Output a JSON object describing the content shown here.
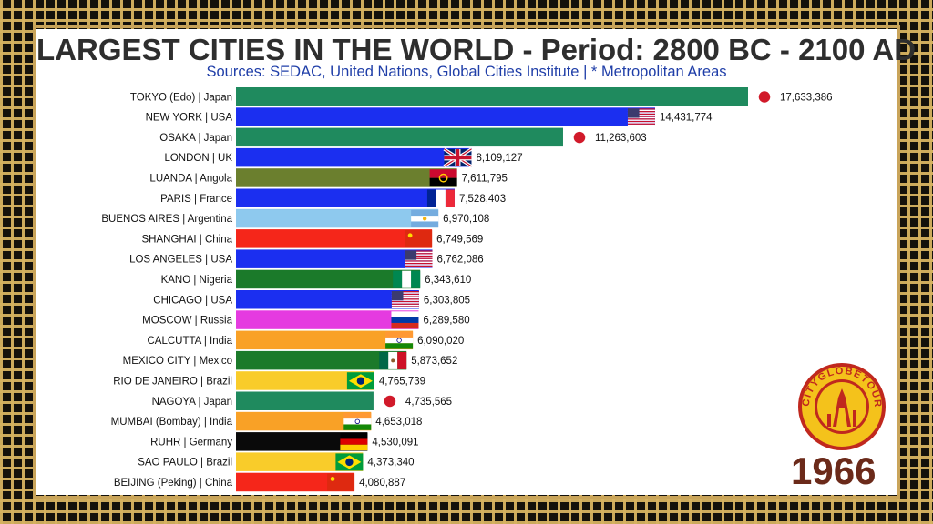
{
  "header": {
    "title": "LARGEST CITIES IN THE WORLD - Period: 2800 BC - 2100 AD",
    "subtitle": "Sources: SEDAC, United Nations, Global Cities Institute | * Metropolitan Areas"
  },
  "year": "1966",
  "logo": {
    "text": "CITYGLOBETOUR",
    "colors": {
      "ring": "#c0281e",
      "fill": "#f4c21b"
    }
  },
  "chart_data": {
    "type": "bar",
    "orientation": "horizontal",
    "xlim": [
      0,
      17633386
    ],
    "grid": false,
    "categories": [
      "TOKYO (Edo) | Japan",
      "NEW YORK | USA",
      "OSAKA | Japan",
      "LONDON | UK",
      "LUANDA | Angola",
      "PARIS | France",
      "BUENOS AIRES | Argentina",
      "SHANGHAI | China",
      "LOS ANGELES | USA",
      "KANO | Nigeria",
      "CHICAGO | USA",
      "MOSCOW | Russia",
      "CALCUTTA | India",
      "MEXICO CITY | Mexico",
      "RIO DE JANEIRO | Brazil",
      "NAGOYA | Japan",
      "MUMBAI (Bombay) | India",
      "RUHR | Germany",
      "SAO PAULO | Brazil",
      "BEIJING (Peking) | China"
    ],
    "values": [
      17633386,
      14431774,
      11263603,
      8109127,
      7611795,
      7528403,
      6970108,
      6749569,
      6762086,
      6343610,
      6303805,
      6289580,
      6090020,
      5873652,
      4765739,
      4735565,
      4653018,
      4530091,
      4373340,
      4080887
    ],
    "value_labels": [
      "17,633,386",
      "14,431,774",
      "11,263,603",
      "8,109,127",
      "7,611,795",
      "7,528,403",
      "6,970,108",
      "6,749,569",
      "6,762,086",
      "6,343,610",
      "6,303,805",
      "6,289,580",
      "6,090,020",
      "5,873,652",
      "4,765,739",
      "4,735,565",
      "4,653,018",
      "4,530,091",
      "4,373,340",
      "4,080,887"
    ],
    "bar_colors": [
      "#1f8a5e",
      "#1b2ff0",
      "#1f8a5e",
      "#1b2ff0",
      "#6b7f2e",
      "#1b2ff0",
      "#8ec9ee",
      "#f5261a",
      "#1b2ff0",
      "#1b7a2a",
      "#1b2ff0",
      "#e53be0",
      "#f9a126",
      "#1b7a2a",
      "#f9cc2a",
      "#1f8a5e",
      "#f9a126",
      "#0a0a0a",
      "#f9cc2a",
      "#f5261a"
    ],
    "flags": [
      "japan",
      "usa",
      "japan",
      "uk",
      "angola",
      "france",
      "argentina",
      "china",
      "usa",
      "nigeria",
      "usa",
      "russia",
      "india",
      "mexico",
      "brazil",
      "japan",
      "india",
      "germany",
      "brazil",
      "china"
    ]
  }
}
